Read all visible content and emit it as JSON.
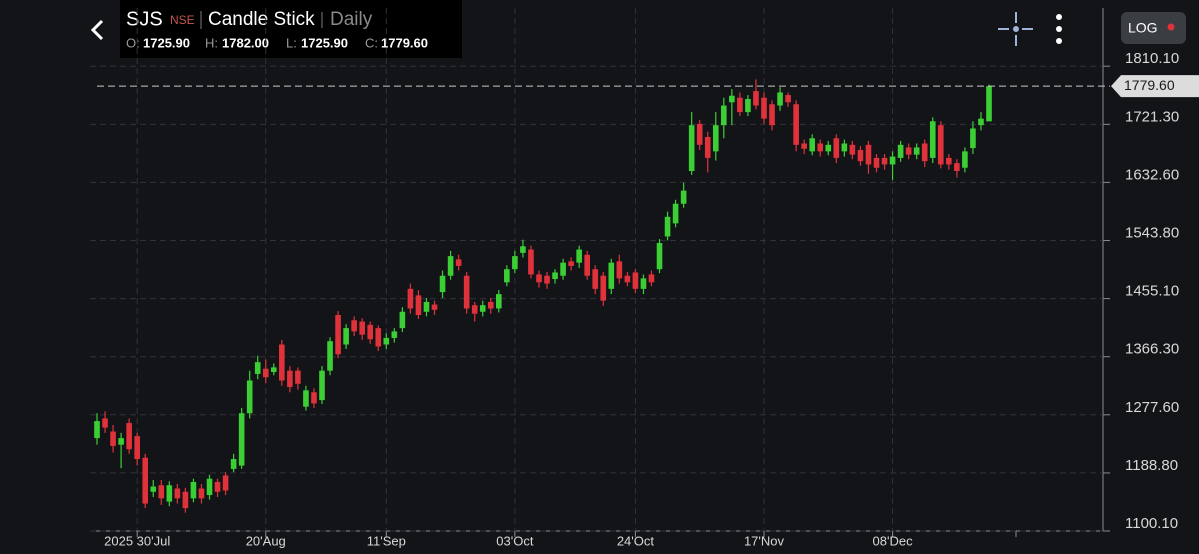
{
  "header": {
    "symbol": "SJS",
    "exchange": "NSE",
    "chart_type": "Candle Stick",
    "interval": "Daily",
    "ohlc": [
      [
        "O:",
        "1725.90"
      ],
      [
        "H:",
        "1782.00"
      ],
      [
        "L:",
        "1725.90"
      ],
      [
        "C:",
        "1779.60"
      ]
    ]
  },
  "log_button": "LOG",
  "chart_data": {
    "type": "candlestick",
    "categories": [
      null,
      null,
      null,
      null,
      null,
      "2025 30'Jul",
      null,
      null,
      null,
      null,
      null,
      null,
      null,
      null,
      null,
      null,
      null,
      null,
      null,
      null,
      null,
      "20'Aug",
      null,
      null,
      null,
      null,
      null,
      null,
      null,
      null,
      null,
      null,
      null,
      null,
      null,
      null,
      "11'Sep",
      null,
      null,
      null,
      null,
      null,
      null,
      null,
      null,
      null,
      null,
      null,
      null,
      null,
      null,
      null,
      "03'Oct",
      null,
      null,
      null,
      null,
      null,
      null,
      null,
      null,
      null,
      null,
      null,
      null,
      null,
      null,
      "24'Oct",
      null,
      null,
      null,
      null,
      null,
      null,
      null,
      null,
      null,
      null,
      null,
      null,
      null,
      null,
      null,
      "17'Nov",
      null,
      null,
      null,
      null,
      null,
      null,
      null,
      null,
      null,
      null,
      null,
      null,
      null,
      null,
      null,
      "08'Dec",
      null,
      null,
      null,
      null,
      null,
      null,
      null,
      null,
      null,
      null,
      null,
      null
    ],
    "open": [
      1242,
      1272,
      1252,
      1232,
      1265,
      1245,
      1212,
      1160,
      1170,
      1145,
      1165,
      1160,
      1150,
      1165,
      1155,
      1175,
      1185,
      1195,
      1200,
      1280,
      1340,
      1348,
      1343,
      1385,
      1345,
      1345,
      1290,
      1312,
      1300,
      1345,
      1430,
      1385,
      1422,
      1420,
      1415,
      1410,
      1385,
      1395,
      1410,
      1470,
      1460,
      1435,
      1446,
      1465,
      1490,
      1515,
      1490,
      1445,
      1435,
      1450,
      1440,
      1480,
      1500,
      1525,
      1530,
      1492,
      1490,
      1485,
      1490,
      1512,
      1510,
      1522,
      1500,
      1490,
      1470,
      1512,
      1490,
      1495,
      1470,
      1492,
      1500,
      1550,
      1570,
      1600,
      1650,
      1722,
      1702,
      1680,
      1720,
      1755,
      1762,
      1740,
      1772,
      1762,
      1752,
      1750,
      1766,
      1752,
      1692,
      1680,
      1692,
      1680,
      1700,
      1680,
      1690,
      1682,
      1690,
      1670,
      1670,
      1660,
      1670,
      1686,
      1675,
      1692,
      1670,
      1720,
      1670,
      1662,
      1655,
      1685,
      1720,
      1725.9
    ],
    "high": [
      1280,
      1283,
      1262,
      1250,
      1272,
      1250,
      1218,
      1178,
      1178,
      1176,
      1172,
      1166,
      1180,
      1172,
      1186,
      1180,
      1190,
      1218,
      1288,
      1345,
      1368,
      1362,
      1356,
      1392,
      1352,
      1350,
      1322,
      1318,
      1352,
      1396,
      1436,
      1416,
      1428,
      1425,
      1420,
      1414,
      1402,
      1410,
      1442,
      1478,
      1468,
      1456,
      1452,
      1498,
      1528,
      1522,
      1496,
      1450,
      1452,
      1456,
      1468,
      1506,
      1528,
      1545,
      1536,
      1498,
      1496,
      1500,
      1516,
      1518,
      1536,
      1528,
      1506,
      1496,
      1516,
      1522,
      1496,
      1500,
      1492,
      1498,
      1546,
      1588,
      1606,
      1632,
      1740,
      1728,
      1710,
      1740,
      1762,
      1775,
      1770,
      1766,
      1790,
      1770,
      1758,
      1778,
      1770,
      1758,
      1698,
      1706,
      1698,
      1696,
      1706,
      1698,
      1696,
      1688,
      1696,
      1676,
      1676,
      1680,
      1696,
      1692,
      1692,
      1698,
      1732,
      1726,
      1676,
      1668,
      1686,
      1726,
      1740,
      1782
    ],
    "low": [
      1232,
      1250,
      1220,
      1196,
      1218,
      1200,
      1135,
      1152,
      1140,
      1138,
      1142,
      1128,
      1144,
      1142,
      1148,
      1152,
      1155,
      1190,
      1195,
      1272,
      1332,
      1326,
      1338,
      1322,
      1312,
      1316,
      1284,
      1288,
      1294,
      1338,
      1364,
      1378,
      1398,
      1392,
      1386,
      1375,
      1378,
      1388,
      1404,
      1432,
      1424,
      1428,
      1430,
      1456,
      1484,
      1498,
      1432,
      1420,
      1428,
      1432,
      1434,
      1474,
      1494,
      1518,
      1486,
      1472,
      1470,
      1478,
      1484,
      1498,
      1502,
      1484,
      1462,
      1444,
      1462,
      1478,
      1474,
      1464,
      1462,
      1474,
      1494,
      1544,
      1564,
      1594,
      1644,
      1682,
      1648,
      1666,
      1700,
      1720,
      1734,
      1734,
      1744,
      1722,
      1712,
      1742,
      1748,
      1680,
      1676,
      1674,
      1672,
      1674,
      1662,
      1672,
      1668,
      1658,
      1646,
      1648,
      1652,
      1636,
      1664,
      1668,
      1668,
      1656,
      1662,
      1654,
      1652,
      1640,
      1648,
      1676,
      1712,
      1725.9
    ],
    "close": [
      1268,
      1258,
      1230,
      1242,
      1225,
      1210,
      1142,
      1168,
      1150,
      1170,
      1150,
      1135,
      1175,
      1150,
      1180,
      1160,
      1162,
      1210,
      1280,
      1330,
      1358,
      1335,
      1350,
      1330,
      1320,
      1325,
      1315,
      1295,
      1345,
      1390,
      1370,
      1410,
      1405,
      1400,
      1393,
      1382,
      1395,
      1405,
      1435,
      1440,
      1430,
      1450,
      1438,
      1490,
      1520,
      1505,
      1440,
      1432,
      1445,
      1440,
      1462,
      1500,
      1520,
      1535,
      1492,
      1480,
      1478,
      1495,
      1510,
      1505,
      1530,
      1490,
      1470,
      1452,
      1510,
      1486,
      1480,
      1470,
      1486,
      1480,
      1540,
      1580,
      1600,
      1620,
      1720,
      1690,
      1670,
      1720,
      1750,
      1765,
      1740,
      1760,
      1750,
      1730,
      1720,
      1770,
      1755,
      1690,
      1684,
      1700,
      1680,
      1690,
      1670,
      1692,
      1675,
      1665,
      1660,
      1655,
      1660,
      1672,
      1690,
      1675,
      1686,
      1665,
      1726,
      1660,
      1660,
      1650,
      1680,
      1715,
      1730,
      1779.6
    ],
    "up_color": "#3ccf35",
    "down_color": "#e0323b",
    "ylim": [
      1100.1,
      1899
    ],
    "yticks": [
      {
        "value": 1100.1,
        "label": "1100.10"
      },
      {
        "value": 1188.8,
        "label": "1188.80"
      },
      {
        "value": 1277.6,
        "label": "1277.60"
      },
      {
        "value": 1366.3,
        "label": "1366.30"
      },
      {
        "value": 1455.1,
        "label": "1455.10"
      },
      {
        "value": 1543.8,
        "label": "1543.80"
      },
      {
        "value": 1632.6,
        "label": "1632.60"
      },
      {
        "value": 1721.3,
        "label": "1721.30"
      },
      {
        "value": 1810.1,
        "label": "1810.10"
      }
    ],
    "last_price": {
      "value": 1779.6,
      "label": "1779.60"
    },
    "grid": true
  }
}
